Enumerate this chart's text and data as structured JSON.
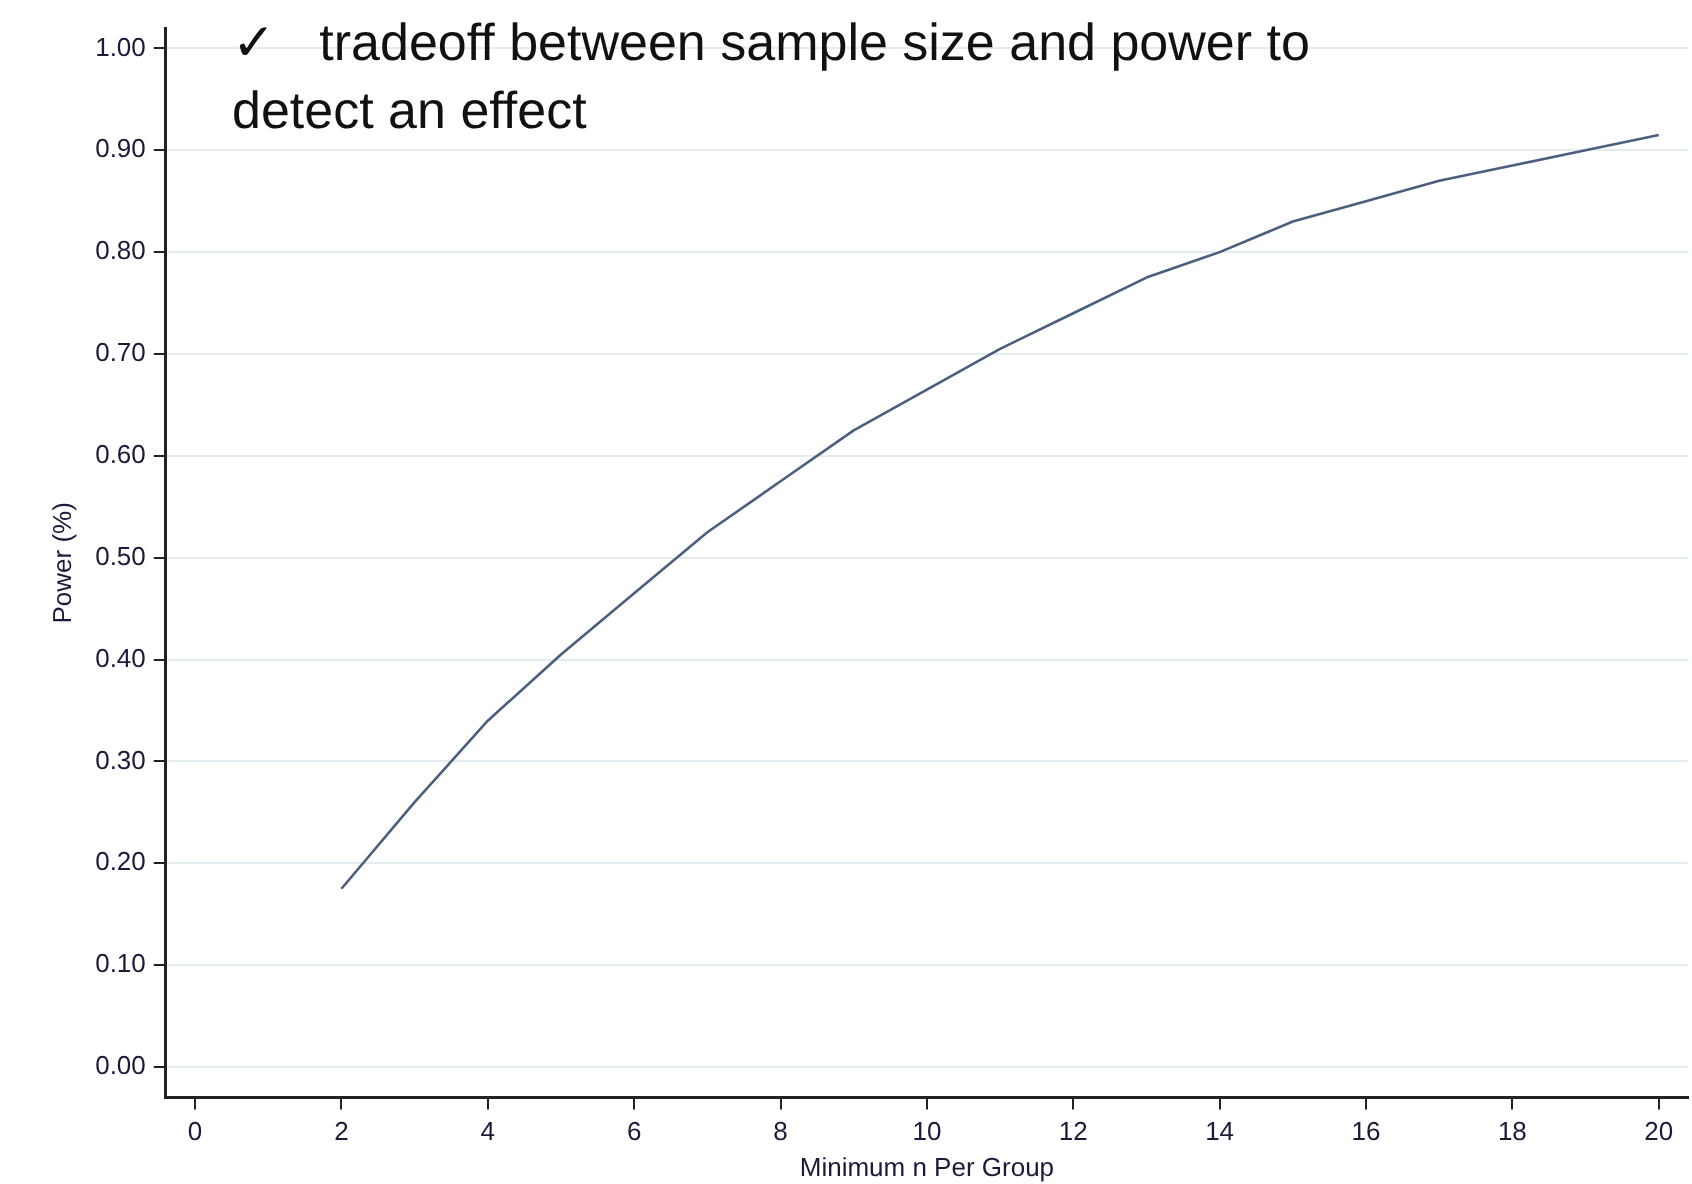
{
  "chart_data": {
    "type": "line",
    "xlabel": "Minimum n Per Group",
    "ylabel": "Power (%)",
    "annotations": [
      "✓   tradeoff between sample size and power to detect an effect"
    ],
    "x": [
      2,
      3,
      4,
      5,
      6,
      7,
      8,
      9,
      10,
      11,
      12,
      13,
      14,
      15,
      16,
      17,
      18,
      19,
      20
    ],
    "series": [
      {
        "color": "#4a5f7d",
        "values": [
          0.175,
          0.26,
          0.34,
          0.405,
          0.465,
          0.525,
          0.575,
          0.625,
          0.665,
          0.705,
          0.74,
          0.775,
          0.8,
          0.83,
          0.85,
          0.87,
          0.885,
          0.9,
          0.915
        ]
      }
    ],
    "xlim": [
      -0.4,
      20.4
    ],
    "xticks": [
      0,
      2,
      4,
      6,
      8,
      10,
      12,
      14,
      16,
      18,
      20
    ],
    "ylim": [
      -0.03,
      1.02
    ],
    "yticks": [
      {
        "value": 0,
        "label": "0.00"
      },
      {
        "value": 0.1,
        "label": "0.10"
      },
      {
        "value": 0.2,
        "label": "0.20"
      },
      {
        "value": 0.3,
        "label": "0.30"
      },
      {
        "value": 0.4,
        "label": "0.40"
      },
      {
        "value": 0.5,
        "label": "0.50"
      },
      {
        "value": 0.6,
        "label": "0.60"
      },
      {
        "value": 0.7,
        "label": "0.70"
      },
      {
        "value": 0.8,
        "label": "0.80"
      },
      {
        "value": 0.9,
        "label": "0.90"
      },
      {
        "value": 1,
        "label": "1.00"
      }
    ],
    "grid": "y",
    "marker": "none",
    "line_style": "solid",
    "legend": false
  }
}
